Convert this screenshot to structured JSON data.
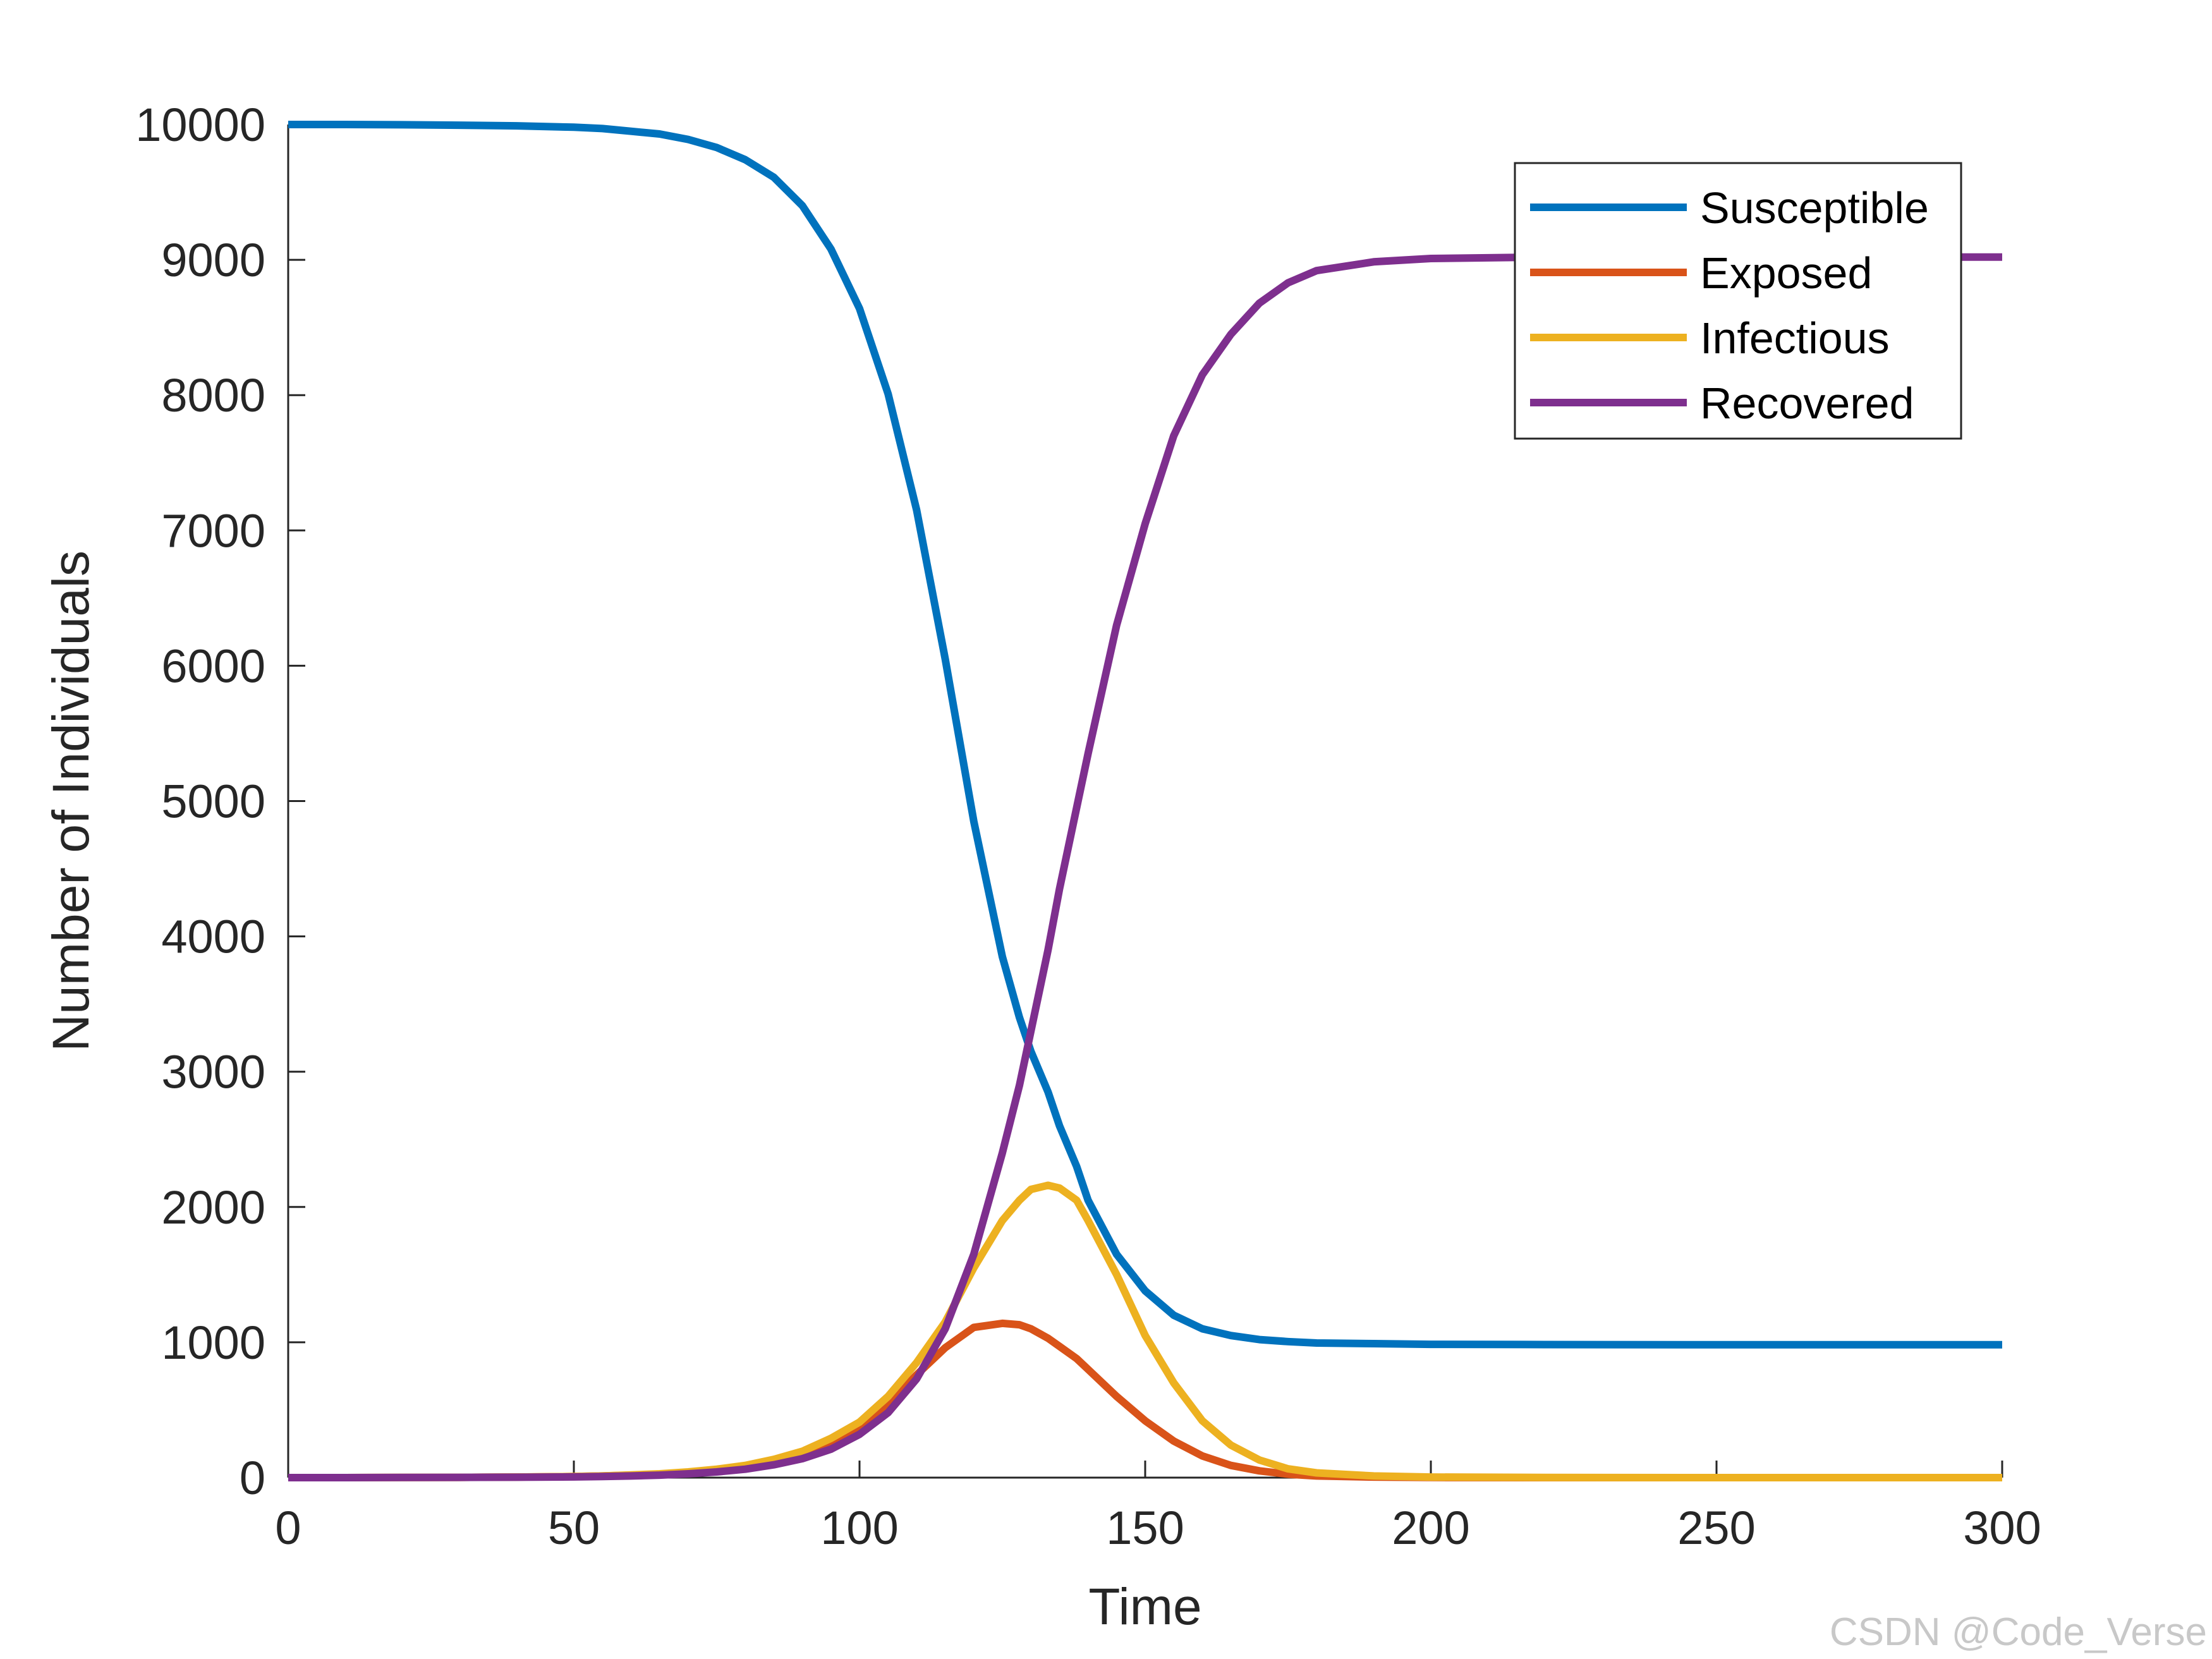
{
  "watermark": "CSDN @Code_Verse",
  "chart_data": {
    "type": "line",
    "title": "",
    "xlabel": "Time",
    "ylabel": "Number of Individuals",
    "xlim": [
      0,
      300
    ],
    "ylim": [
      0,
      10000
    ],
    "xticks": [
      0,
      50,
      100,
      150,
      200,
      250,
      300
    ],
    "yticks": [
      0,
      1000,
      2000,
      3000,
      4000,
      5000,
      6000,
      7000,
      8000,
      9000,
      10000
    ],
    "grid": false,
    "legend_position": "top-right",
    "x": [
      0,
      10,
      20,
      30,
      40,
      50,
      55,
      60,
      65,
      70,
      75,
      80,
      85,
      90,
      95,
      100,
      105,
      110,
      115,
      120,
      125,
      128,
      130,
      133,
      135,
      138,
      140,
      145,
      150,
      155,
      160,
      165,
      170,
      175,
      180,
      190,
      200,
      220,
      250,
      300
    ],
    "series": [
      {
        "name": "Susceptible",
        "color": "#0072BD",
        "values": [
          10000,
          10000,
          9998,
          9995,
          9990,
          9980,
          9970,
          9950,
          9930,
          9890,
          9830,
          9740,
          9610,
          9400,
          9080,
          8640,
          8010,
          7150,
          6050,
          4850,
          3850,
          3400,
          3150,
          2850,
          2600,
          2300,
          2050,
          1650,
          1380,
          1200,
          1100,
          1050,
          1020,
          1005,
          995,
          990,
          985,
          983,
          982,
          982
        ]
      },
      {
        "name": "Exposed",
        "color": "#D95319",
        "values": [
          0,
          0,
          1,
          2,
          4,
          8,
          12,
          18,
          26,
          38,
          55,
          80,
          115,
          170,
          250,
          370,
          540,
          760,
          960,
          1110,
          1140,
          1130,
          1100,
          1030,
          970,
          880,
          800,
          600,
          420,
          270,
          160,
          90,
          50,
          25,
          12,
          4,
          1,
          0,
          0,
          0
        ]
      },
      {
        "name": "Infectious",
        "color": "#EDB120",
        "values": [
          0,
          0,
          1,
          2,
          4,
          8,
          12,
          20,
          28,
          42,
          62,
          90,
          135,
          195,
          290,
          410,
          600,
          850,
          1150,
          1550,
          1900,
          2050,
          2130,
          2160,
          2140,
          2050,
          1900,
          1500,
          1050,
          700,
          420,
          240,
          130,
          65,
          35,
          12,
          4,
          1,
          0,
          0
        ]
      },
      {
        "name": "Recovered",
        "color": "#7E2F8E",
        "values": [
          0,
          0,
          1,
          2,
          3,
          5,
          8,
          12,
          18,
          28,
          42,
          62,
          95,
          140,
          210,
          320,
          480,
          730,
          1100,
          1650,
          2400,
          2900,
          3300,
          3900,
          4350,
          4950,
          5350,
          6300,
          7050,
          7700,
          8150,
          8450,
          8680,
          8830,
          8920,
          8985,
          9010,
          9020,
          9020,
          9020
        ]
      }
    ]
  }
}
